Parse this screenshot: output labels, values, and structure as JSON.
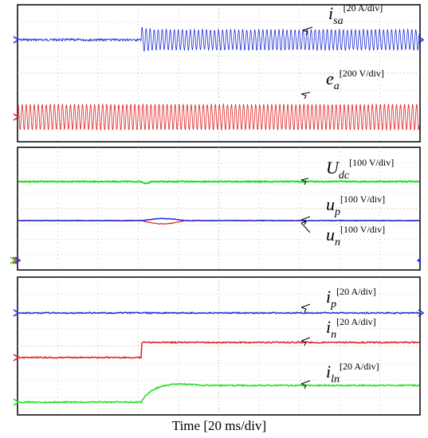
{
  "xlabel": "Time [20 ms/div]",
  "colors": {
    "blue": "#1f2fd6",
    "red": "#e02020",
    "green": "#1ee01e",
    "frame": "#000000",
    "grid": "#9a9a9a"
  },
  "panels": [
    {
      "traces": [
        {
          "sym": "i",
          "sub": "sa",
          "scale": "[20 A/div]",
          "color": "blue"
        },
        {
          "sym": "e",
          "sub": "a",
          "scale": "[200 V/div]",
          "color": "red"
        }
      ]
    },
    {
      "traces": [
        {
          "sym": "U",
          "sub": "dc",
          "scale": "[100 V/div]",
          "color": "green"
        },
        {
          "sym": "u",
          "sub": "p",
          "scale": "[100 V/div]",
          "color": "blue"
        },
        {
          "sym": "u",
          "sub": "n",
          "scale": "[100 V/div]",
          "color": "blue"
        }
      ]
    },
    {
      "traces": [
        {
          "sym": "i",
          "sub": "p",
          "scale": "[20 A/div]",
          "color": "blue"
        },
        {
          "sym": "i",
          "sub": "n",
          "scale": "[20 A/div]",
          "color": "red"
        },
        {
          "sym": "i",
          "sub": "ln",
          "scale": "[20 A/div]",
          "color": "green"
        }
      ]
    }
  ],
  "chart_data": {
    "type": "line",
    "xlabel": "Time [20 ms/div]",
    "x_divisions": 10,
    "y_divisions": 8,
    "step_time_div": 3.1,
    "series": [
      {
        "name": "i_sa",
        "scale": "[20 A/div]",
        "before": "~0 A (noise)",
        "after": "sinusoid, amplitude ~0.6 div, ~10 cycles/div"
      },
      {
        "name": "e_a",
        "scale": "[200 V/div]",
        "waveform": "sinusoid, amplitude ~0.75 div, ~10 cycles/div"
      },
      {
        "name": "U_dc",
        "scale": "[100 V/div]",
        "waveform": "constant with small dip at step"
      },
      {
        "name": "u_p",
        "scale": "[100 V/div]",
        "waveform": "constant, small disturbance at step"
      },
      {
        "name": "u_n",
        "scale": "[100 V/div]",
        "waveform": "constant, small disturbance at step"
      },
      {
        "name": "i_p",
        "scale": "[20 A/div]",
        "waveform": "constant"
      },
      {
        "name": "i_n",
        "scale": "[20 A/div]",
        "before_div": 0,
        "after_div": 0.4,
        "waveform": "step up"
      },
      {
        "name": "i_ln",
        "scale": "[20 A/div]",
        "before_div": 0,
        "after_div": 0.4,
        "waveform": "first-order rise with slight overshoot"
      }
    ]
  }
}
